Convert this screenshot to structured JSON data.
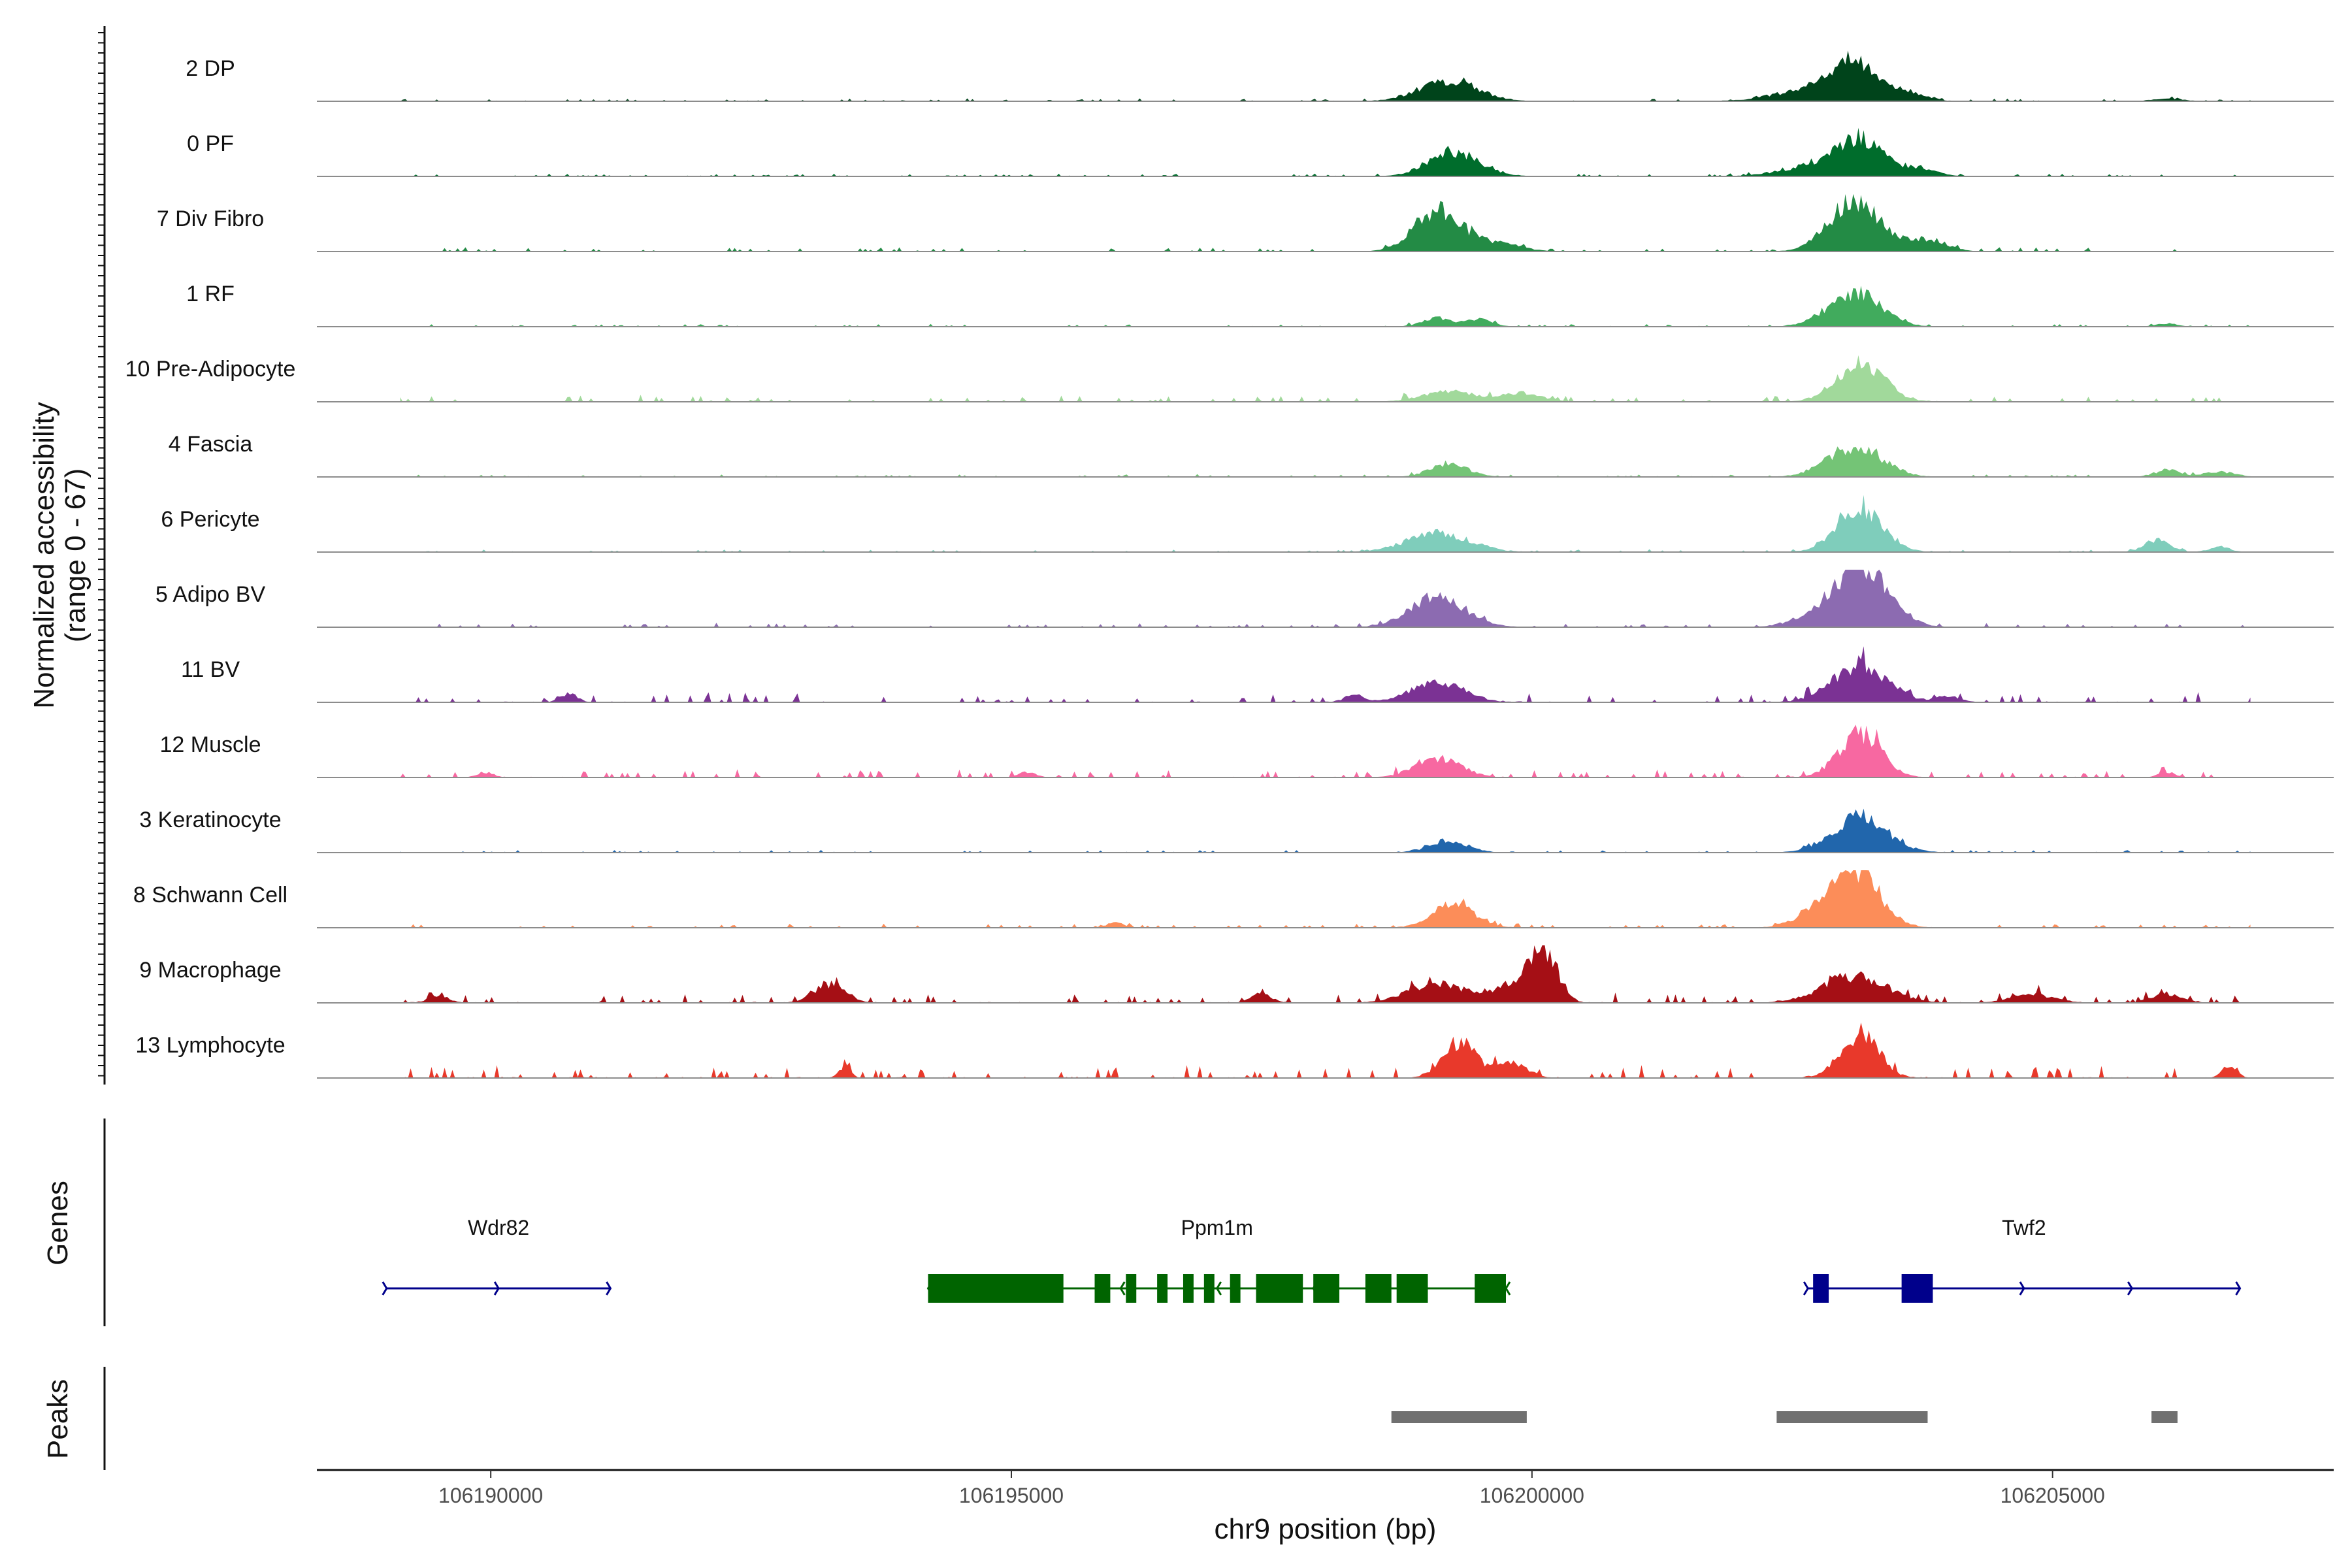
{
  "chart_data": {
    "type": "area",
    "title": "",
    "xlabel": "chr9 position (bp)",
    "ylabel": "Normalized accessibility",
    "ylabel_range": "(range 0 - 67)",
    "y_range": [
      0,
      67
    ],
    "region": [
      106188330,
      106207700
    ],
    "xticks": [
      106190000,
      106195000,
      106200000,
      106205000
    ],
    "xtick_labels": [
      "106190000",
      "106195000",
      "106200000",
      "106205000"
    ],
    "genes_panel_title": "Genes",
    "peaks_panel_title": "Peaks",
    "tracks": [
      {
        "name": "2 DP",
        "color": "#00441b",
        "peaks": [
          [
            106199200,
            24,
            280
          ],
          [
            106203100,
            44,
            200
          ],
          [
            106202700,
            14,
            350
          ],
          [
            106203600,
            10,
            180
          ],
          [
            106206100,
            3,
            150
          ]
        ],
        "noise": 2,
        "seed": 1
      },
      {
        "name": "0 PF",
        "color": "#006d2c",
        "peaks": [
          [
            106199250,
            28,
            250
          ],
          [
            106203150,
            42,
            210
          ],
          [
            106202700,
            12,
            300
          ],
          [
            106203700,
            10,
            170
          ]
        ],
        "noise": 2,
        "seed": 2
      },
      {
        "name": "7 Div Fibro",
        "color": "#238b45",
        "peaks": [
          [
            106199100,
            48,
            230
          ],
          [
            106203100,
            58,
            240
          ],
          [
            106199700,
            10,
            200
          ],
          [
            106203800,
            14,
            180
          ]
        ],
        "noise": 3,
        "seed": 3
      },
      {
        "name": "1 RF",
        "color": "#41ab5d",
        "peaks": [
          [
            106199100,
            10,
            150
          ],
          [
            106199500,
            8,
            120
          ],
          [
            106203100,
            40,
            250
          ],
          [
            106206100,
            4,
            100
          ]
        ],
        "noise": 2,
        "seed": 4
      },
      {
        "name": "10 Pre-Adipocyte",
        "color": "#a1d99b",
        "peaks": [
          [
            106199200,
            12,
            250
          ],
          [
            106199900,
            10,
            200
          ],
          [
            106203150,
            44,
            230
          ]
        ],
        "noise": 5,
        "seed": 5
      },
      {
        "name": "4 Fascia",
        "color": "#74c476",
        "peaks": [
          [
            106199200,
            16,
            180
          ],
          [
            106203100,
            36,
            260
          ],
          [
            106206100,
            8,
            120
          ],
          [
            106206600,
            6,
            150
          ]
        ],
        "noise": 2,
        "seed": 6
      },
      {
        "name": "6 Pericyte",
        "color": "#7fcdbb",
        "peaks": [
          [
            106199100,
            22,
            300
          ],
          [
            106203150,
            52,
            220
          ],
          [
            106206000,
            14,
            120
          ],
          [
            106206600,
            6,
            100
          ]
        ],
        "noise": 2,
        "seed": 7
      },
      {
        "name": "5 Adipo BV",
        "color": "#8c6bb1",
        "peaks": [
          [
            106199100,
            36,
            260
          ],
          [
            106203200,
            66,
            250
          ],
          [
            106202800,
            16,
            250
          ]
        ],
        "noise": 3,
        "seed": 8
      },
      {
        "name": "11 BV",
        "color": "#7b3294",
        "peaks": [
          [
            106199100,
            24,
            250
          ],
          [
            106203150,
            44,
            260
          ],
          [
            106190750,
            10,
            80
          ],
          [
            106198300,
            8,
            100
          ],
          [
            106204000,
            7,
            120
          ]
        ],
        "noise": 7,
        "seed": 9
      },
      {
        "name": "12 Muscle",
        "color": "#f768a1",
        "peaks": [
          [
            106199100,
            22,
            220
          ],
          [
            106203150,
            52,
            200
          ],
          [
            106189950,
            6,
            80
          ],
          [
            106195150,
            6,
            80
          ],
          [
            106206100,
            6,
            80
          ]
        ],
        "noise": 6,
        "seed": 10
      },
      {
        "name": "3 Keratinocyte",
        "color": "#2166ac",
        "peaks": [
          [
            106199200,
            14,
            180
          ],
          [
            106203150,
            42,
            260
          ]
        ],
        "noise": 2,
        "seed": 11
      },
      {
        "name": "8 Schwann Cell",
        "color": "#fc8d59",
        "peaks": [
          [
            106199250,
            28,
            200
          ],
          [
            106203100,
            66,
            230
          ],
          [
            106196000,
            6,
            80
          ],
          [
            106202700,
            12,
            200
          ]
        ],
        "noise": 3,
        "seed": 12
      },
      {
        "name": "9 Macrophage",
        "color": "#a50f15",
        "peaks": [
          [
            106200100,
            62,
            130
          ],
          [
            106193250,
            22,
            150
          ],
          [
            106199100,
            22,
            280
          ],
          [
            106199800,
            18,
            200
          ],
          [
            106203100,
            32,
            300
          ],
          [
            106197400,
            10,
            100
          ],
          [
            106206100,
            10,
            150
          ],
          [
            106189500,
            8,
            100
          ],
          [
            106204800,
            10,
            200
          ]
        ],
        "noise": 7,
        "seed": 13
      },
      {
        "name": "13 Lymphocyte",
        "color": "#e8392b",
        "peaks": [
          [
            106199300,
            42,
            160
          ],
          [
            106203150,
            52,
            180
          ],
          [
            106193400,
            10,
            60
          ],
          [
            106199800,
            18,
            150
          ],
          [
            106206700,
            14,
            70
          ]
        ],
        "noise": 9,
        "seed": 14
      }
    ],
    "genes": [
      {
        "name": "Wdr82",
        "color": "#00008b",
        "start": 106189000,
        "end": 106191150,
        "strand": "+",
        "exons": []
      },
      {
        "name": "Ppm1m",
        "color": "#006400",
        "start": 106194200,
        "end": 106199750,
        "strand": "-",
        "exons": [
          [
            106194200,
            106195500
          ],
          [
            106195800,
            106195950
          ],
          [
            106196100,
            106196200
          ],
          [
            106196400,
            106196500
          ],
          [
            106196650,
            106196750
          ],
          [
            106196850,
            106196950
          ],
          [
            106197100,
            106197200
          ],
          [
            106197350,
            106197800
          ],
          [
            106197900,
            106198150
          ],
          [
            106198400,
            106198650
          ],
          [
            106198700,
            106199000
          ],
          [
            106199450,
            106199750
          ]
        ]
      },
      {
        "name": "Twf2",
        "color": "#00008b",
        "start": 106202650,
        "end": 106206800,
        "strand": "+",
        "exons": [
          [
            106202700,
            106202850
          ],
          [
            106203550,
            106203850
          ]
        ]
      }
    ],
    "peaks": [
      [
        106198650,
        106199950
      ],
      [
        106202350,
        106203800
      ],
      [
        106205950,
        106206200
      ]
    ]
  }
}
